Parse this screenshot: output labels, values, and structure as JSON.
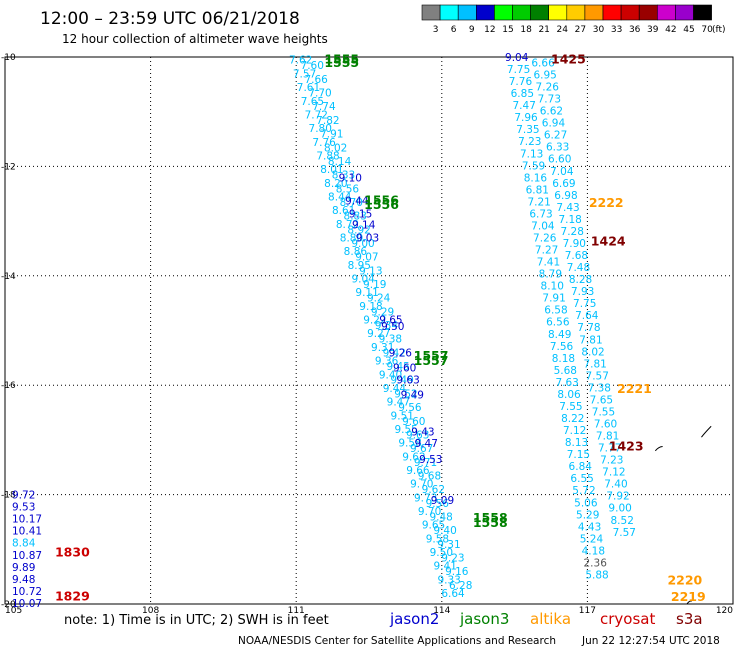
{
  "header": {
    "title": "12:00 – 23:59 UTC 06/21/2018",
    "subtitle": "12 hour collection of altimeter wave heights"
  },
  "colorbar": {
    "unit_label": "(ft)",
    "bins": [
      {
        "label": "3",
        "color": "#808080"
      },
      {
        "label": "6",
        "color": "#00ffff"
      },
      {
        "label": "9",
        "color": "#00c0ff"
      },
      {
        "label": "12",
        "color": "#0000cc"
      },
      {
        "label": "15",
        "color": "#00ff00"
      },
      {
        "label": "18",
        "color": "#00cc00"
      },
      {
        "label": "21",
        "color": "#008000"
      },
      {
        "label": "24",
        "color": "#ffff00"
      },
      {
        "label": "27",
        "color": "#ffcc00"
      },
      {
        "label": "30",
        "color": "#ff9900"
      },
      {
        "label": "33",
        "color": "#ff0000"
      },
      {
        "label": "36",
        "color": "#cc0000"
      },
      {
        "label": "39",
        "color": "#990000"
      },
      {
        "label": "42",
        "color": "#cc00cc"
      },
      {
        "label": "45",
        "color": "#9900cc"
      },
      {
        "label": "70",
        "color": "#000000"
      }
    ]
  },
  "axes": {
    "lon_ticks": [
      "105",
      "108",
      "111",
      "114",
      "117",
      "120"
    ],
    "lat_ticks": [
      "-10",
      "-12",
      "-14",
      "-16",
      "-18",
      "-20"
    ],
    "lon_range": [
      105,
      120
    ],
    "lat_range": [
      -10,
      -20
    ]
  },
  "colors": {
    "jason2": "#0000cc",
    "jason3": "#008000",
    "altika": "#ff9900",
    "cryosat": "#cc0000",
    "s3a": "#800000",
    "light": "#00c0ff",
    "grey": "#555555"
  },
  "time_labels": [
    {
      "text": "1555",
      "lon": 111.58,
      "lat": -10.05,
      "sat": "jason3"
    },
    {
      "text": "1555",
      "lon": 111.58,
      "lat": -10.11,
      "sat": "jason3"
    },
    {
      "text": "1556",
      "lon": 112.4,
      "lat": -12.62,
      "sat": "jason3"
    },
    {
      "text": "1556",
      "lon": 112.4,
      "lat": -12.71,
      "sat": "jason3"
    },
    {
      "text": "1557",
      "lon": 113.42,
      "lat": -15.47,
      "sat": "jason3"
    },
    {
      "text": "1557",
      "lon": 113.42,
      "lat": -15.56,
      "sat": "jason3"
    },
    {
      "text": "1558",
      "lon": 114.64,
      "lat": -18.43,
      "sat": "jason3"
    },
    {
      "text": "1558",
      "lon": 114.64,
      "lat": -18.52,
      "sat": "jason3"
    },
    {
      "text": "1425",
      "lon": 116.25,
      "lat": -10.05,
      "sat": "s3a"
    },
    {
      "text": "1424",
      "lon": 117.07,
      "lat": -13.37,
      "sat": "s3a"
    },
    {
      "text": "1423",
      "lon": 117.44,
      "lat": -17.12,
      "sat": "s3a"
    },
    {
      "text": "2222",
      "lon": 117.03,
      "lat": -12.67,
      "sat": "altika"
    },
    {
      "text": "2221",
      "lon": 117.61,
      "lat": -16.07,
      "sat": "altika"
    },
    {
      "text": "2220",
      "lon": 118.65,
      "lat": -19.57,
      "sat": "altika"
    },
    {
      "text": "2219",
      "lon": 118.72,
      "lat": -19.87,
      "sat": "altika"
    },
    {
      "text": "1830",
      "lon": 106.03,
      "lat": -19.06,
      "sat": "cryosat"
    },
    {
      "text": "1829",
      "lon": 106.03,
      "lat": -19.86,
      "sat": "cryosat"
    }
  ],
  "swh_left": [
    {
      "text": "9.72",
      "lat": -18.0,
      "sat": "jason2"
    },
    {
      "text": "9.53",
      "lat": -18.22,
      "sat": "jason2"
    },
    {
      "text": "10.17",
      "lat": -18.44,
      "sat": "jason2"
    },
    {
      "text": "10.41",
      "lat": -18.66,
      "sat": "jason2"
    },
    {
      "text": "8.84",
      "lat": -18.88,
      "sat": "light"
    },
    {
      "text": "10.87",
      "lat": -19.1,
      "sat": "jason2"
    },
    {
      "text": "9.89",
      "lat": -19.32,
      "sat": "jason2"
    },
    {
      "text": "9.48",
      "lat": -19.54,
      "sat": "jason2"
    },
    {
      "text": "10.72",
      "lat": -19.76,
      "sat": "jason2"
    },
    {
      "text": "10.07",
      "lat": -19.98,
      "sat": "jason2"
    }
  ],
  "swh_track_a": [
    {
      "text": "7.62",
      "lat": -10.05
    },
    {
      "text": "7.57",
      "lat": -10.3
    },
    {
      "text": "7.61",
      "lat": -10.55
    },
    {
      "text": "7.65",
      "lat": -10.8
    },
    {
      "text": "7.72",
      "lat": -11.05
    },
    {
      "text": "7.80",
      "lat": -11.3
    },
    {
      "text": "7.76",
      "lat": -11.55
    },
    {
      "text": "7.88",
      "lat": -11.8
    },
    {
      "text": "8.01",
      "lat": -12.05
    },
    {
      "text": "8.20",
      "lat": -12.3
    },
    {
      "text": "8.44",
      "lat": -12.55
    },
    {
      "text": "8.61",
      "lat": -12.8
    },
    {
      "text": "8.72",
      "lat": -13.05
    },
    {
      "text": "8.80",
      "lat": -13.3
    },
    {
      "text": "8.86",
      "lat": -13.55
    },
    {
      "text": "8.95",
      "lat": -13.8
    },
    {
      "text": "9.04",
      "lat": -14.05
    },
    {
      "text": "9.11",
      "lat": -14.3
    },
    {
      "text": "9.18",
      "lat": -14.55
    },
    {
      "text": "9.22",
      "lat": -14.8
    },
    {
      "text": "9.27",
      "lat": -15.05
    },
    {
      "text": "9.31",
      "lat": -15.3
    },
    {
      "text": "9.36",
      "lat": -15.55
    },
    {
      "text": "9.40",
      "lat": -15.8
    },
    {
      "text": "9.44",
      "lat": -16.05
    },
    {
      "text": "9.47",
      "lat": -16.3
    },
    {
      "text": "9.51",
      "lat": -16.55
    },
    {
      "text": "9.55",
      "lat": -16.8
    },
    {
      "text": "9.58",
      "lat": -17.05
    },
    {
      "text": "9.62",
      "lat": -17.3
    },
    {
      "text": "9.66",
      "lat": -17.55
    },
    {
      "text": "9.70",
      "lat": -17.8
    },
    {
      "text": "9.73",
      "lat": -18.05
    },
    {
      "text": "9.70",
      "lat": -18.3
    },
    {
      "text": "9.65",
      "lat": -18.55
    },
    {
      "text": "9.58",
      "lat": -18.8
    },
    {
      "text": "9.50",
      "lat": -19.05
    },
    {
      "text": "9.41",
      "lat": -19.3
    },
    {
      "text": "9.33",
      "lat": -19.55
    },
    {
      "text": "6.64",
      "lat": -19.8
    }
  ],
  "swh_track_b": [
    {
      "text": "7.60",
      "lat": -10.15
    },
    {
      "text": "7.66",
      "lat": -10.4
    },
    {
      "text": "7.70",
      "lat": -10.65
    },
    {
      "text": "7.74",
      "lat": -10.9
    },
    {
      "text": "7.82",
      "lat": -11.15
    },
    {
      "text": "7.91",
      "lat": -11.4
    },
    {
      "text": "8.02",
      "lat": -11.65
    },
    {
      "text": "8.14",
      "lat": -11.9
    },
    {
      "text": "8.33",
      "lat": -12.15
    },
    {
      "text": "8.56",
      "lat": -12.4
    },
    {
      "text": "8.70",
      "lat": -12.65
    },
    {
      "text": "8.83",
      "lat": -12.9
    },
    {
      "text": "8.92",
      "lat": -13.15
    },
    {
      "text": "9.00",
      "lat": -13.4
    },
    {
      "text": "9.07",
      "lat": -13.65
    },
    {
      "text": "9.13",
      "lat": -13.9
    },
    {
      "text": "9.19",
      "lat": -14.15
    },
    {
      "text": "9.24",
      "lat": -14.4
    },
    {
      "text": "9.29",
      "lat": -14.65
    },
    {
      "text": "9.34",
      "lat": -14.9
    },
    {
      "text": "9.38",
      "lat": -15.15
    },
    {
      "text": "9.42",
      "lat": -15.4
    },
    {
      "text": "9.45",
      "lat": -15.65
    },
    {
      "text": "9.49",
      "lat": -15.9
    },
    {
      "text": "9.52",
      "lat": -16.15
    },
    {
      "text": "9.56",
      "lat": -16.4
    },
    {
      "text": "9.60",
      "lat": -16.65
    },
    {
      "text": "9.63",
      "lat": -16.9
    },
    {
      "text": "9.67",
      "lat": -17.15
    },
    {
      "text": "9.71",
      "lat": -17.4
    },
    {
      "text": "9.68",
      "lat": -17.65
    },
    {
      "text": "9.62",
      "lat": -17.9
    },
    {
      "text": "9.56",
      "lat": -18.15
    },
    {
      "text": "9.48",
      "lat": -18.4
    },
    {
      "text": "9.40",
      "lat": -18.65
    },
    {
      "text": "9.31",
      "lat": -18.9
    },
    {
      "text": "9.23",
      "lat": -19.15
    },
    {
      "text": "9.16",
      "lat": -19.4
    },
    {
      "text": "6.28",
      "lat": -19.65
    }
  ],
  "swh_dark_mid": [
    {
      "text": "9.10",
      "lat": -12.2
    },
    {
      "text": "9.44",
      "lat": -12.62
    },
    {
      "text": "9.15",
      "lat": -12.86
    },
    {
      "text": "9.14",
      "lat": -13.06
    },
    {
      "text": "9.03",
      "lat": -13.3
    },
    {
      "text": "9.65",
      "lat": -14.8
    },
    {
      "text": "9.50",
      "lat": -14.92
    },
    {
      "text": "9.26",
      "lat": -15.4
    },
    {
      "text": "9.60",
      "lat": -15.68
    },
    {
      "text": "9.63",
      "lat": -15.9
    },
    {
      "text": "9.49",
      "lat": -16.17
    },
    {
      "text": "9.43",
      "lat": -16.85
    },
    {
      "text": "9.47",
      "lat": -17.06
    },
    {
      "text": "9.53",
      "lat": -17.35
    },
    {
      "text": "9.09",
      "lat": -18.1
    }
  ],
  "swh_right_a": [
    {
      "text": "9.04",
      "lat": -10.0
    },
    {
      "text": "7.75",
      "lat": -10.22
    },
    {
      "text": "7.76",
      "lat": -10.44
    },
    {
      "text": "6.85",
      "lat": -10.66
    },
    {
      "text": "7.47",
      "lat": -10.88
    },
    {
      "text": "7.96",
      "lat": -11.1
    },
    {
      "text": "7.35",
      "lat": -11.32
    },
    {
      "text": "7.23",
      "lat": -11.54
    },
    {
      "text": "7.13",
      "lat": -11.76
    },
    {
      "text": "7.59",
      "lat": -11.98
    },
    {
      "text": "8.16",
      "lat": -12.2
    },
    {
      "text": "6.81",
      "lat": -12.42
    },
    {
      "text": "7.21",
      "lat": -12.64
    },
    {
      "text": "6.73",
      "lat": -12.86
    },
    {
      "text": "7.04",
      "lat": -13.08
    },
    {
      "text": "7.26",
      "lat": -13.3
    },
    {
      "text": "7.27",
      "lat": -13.52
    },
    {
      "text": "7.41",
      "lat": -13.74
    },
    {
      "text": "8.79",
      "lat": -13.96
    },
    {
      "text": "8.10",
      "lat": -14.18
    },
    {
      "text": "7.91",
      "lat": -14.4
    },
    {
      "text": "6.58",
      "lat": -14.62
    },
    {
      "text": "6.56",
      "lat": -14.84
    },
    {
      "text": "8.49",
      "lat": -15.06
    },
    {
      "text": "7.56",
      "lat": -15.28
    },
    {
      "text": "8.18",
      "lat": -15.5
    },
    {
      "text": "5.68",
      "lat": -15.72
    },
    {
      "text": "7.63",
      "lat": -15.94
    },
    {
      "text": "8.06",
      "lat": -16.16
    },
    {
      "text": "7.55",
      "lat": -16.38
    },
    {
      "text": "8.22",
      "lat": -16.6
    },
    {
      "text": "7.12",
      "lat": -16.82
    },
    {
      "text": "8.13",
      "lat": -17.04
    },
    {
      "text": "7.15",
      "lat": -17.26
    },
    {
      "text": "6.84",
      "lat": -17.48
    },
    {
      "text": "6.55",
      "lat": -17.7
    },
    {
      "text": "5.72",
      "lat": -17.92
    },
    {
      "text": "5.06",
      "lat": -18.14
    },
    {
      "text": "5.29",
      "lat": -18.36
    },
    {
      "text": "4.43",
      "lat": -18.58
    },
    {
      "text": "5.24",
      "lat": -18.8
    },
    {
      "text": "4.18",
      "lat": -19.02
    },
    {
      "text": "2.36",
      "lat": -19.24
    },
    {
      "text": "5.88",
      "lat": -19.46
    }
  ],
  "swh_right_b": [
    {
      "text": "6.66",
      "lat": -10.1
    },
    {
      "text": "6.95",
      "lat": -10.32
    },
    {
      "text": "7.26",
      "lat": -10.54
    },
    {
      "text": "7.73",
      "lat": -10.76
    },
    {
      "text": "6.62",
      "lat": -10.98
    },
    {
      "text": "6.94",
      "lat": -11.2
    },
    {
      "text": "6.27",
      "lat": -11.42
    },
    {
      "text": "6.33",
      "lat": -11.64
    },
    {
      "text": "6.60",
      "lat": -11.86
    },
    {
      "text": "7.04",
      "lat": -12.08
    },
    {
      "text": "6.69",
      "lat": -12.3
    },
    {
      "text": "6.98",
      "lat": -12.52
    },
    {
      "text": "7.43",
      "lat": -12.74
    },
    {
      "text": "7.18",
      "lat": -12.96
    },
    {
      "text": "7.28",
      "lat": -13.18
    },
    {
      "text": "7.90",
      "lat": -13.4
    },
    {
      "text": "7.68",
      "lat": -13.62
    },
    {
      "text": "7.48",
      "lat": -13.84
    },
    {
      "text": "8.28",
      "lat": -14.06
    },
    {
      "text": "7.93",
      "lat": -14.28
    },
    {
      "text": "7.75",
      "lat": -14.5
    },
    {
      "text": "7.64",
      "lat": -14.72
    },
    {
      "text": "7.78",
      "lat": -14.94
    },
    {
      "text": "7.81",
      "lat": -15.16
    },
    {
      "text": "8.02",
      "lat": -15.38
    },
    {
      "text": "7.81",
      "lat": -15.6
    },
    {
      "text": "7.57",
      "lat": -15.82
    },
    {
      "text": "7.38",
      "lat": -16.04
    },
    {
      "text": "7.65",
      "lat": -16.26
    },
    {
      "text": "7.55",
      "lat": -16.48
    },
    {
      "text": "7.60",
      "lat": -16.7
    },
    {
      "text": "7.81",
      "lat": -16.92
    },
    {
      "text": "7.77",
      "lat": -17.14
    },
    {
      "text": "7.23",
      "lat": -17.36
    },
    {
      "text": "7.12",
      "lat": -17.58
    },
    {
      "text": "7.40",
      "lat": -17.8
    },
    {
      "text": "7.92",
      "lat": -18.02
    },
    {
      "text": "9.00",
      "lat": -18.24
    },
    {
      "text": "8.52",
      "lat": -18.46
    },
    {
      "text": "7.57",
      "lat": -18.68
    }
  ],
  "coastline": [
    {
      "lon": 118.4,
      "lat": -17.2
    },
    {
      "lon": 118.55,
      "lat": -17.12
    },
    {
      "lon": 119.35,
      "lat": -16.95
    },
    {
      "lon": 119.55,
      "lat": -16.75
    },
    {
      "lon": 119.05,
      "lat": -20.0
    },
    {
      "lon": 119.15,
      "lat": -19.95
    }
  ],
  "footer": {
    "note_prefix": "note:  1) Time is in UTC;  2) SWH is in feet",
    "sat_jason2": "jason2",
    "sat_jason3": "jason3",
    "sat_altika": "altika",
    "sat_cryosat": "cryosat",
    "sat_s3a": "s3a",
    "credit": "NOAA/NESDIS Center for Satellite Applications and Research",
    "timestamp": "Jun 22 12:27:54 UTC 2018"
  }
}
